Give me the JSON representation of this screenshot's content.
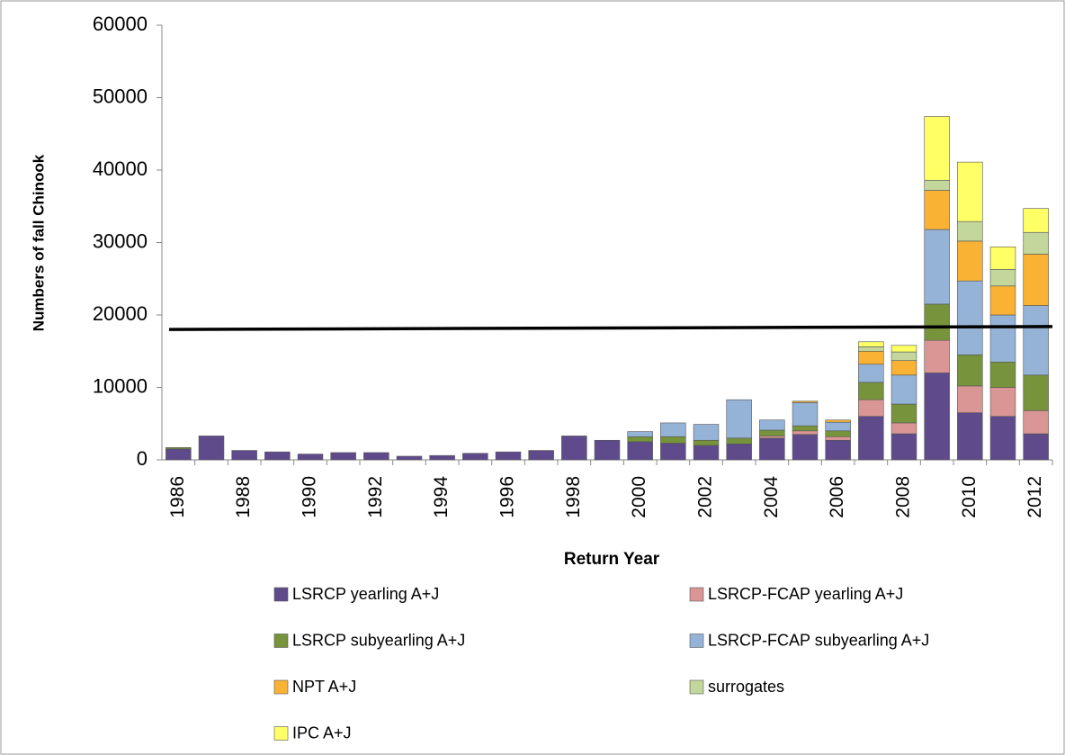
{
  "chart_data": {
    "type": "stacked_bar",
    "y_label": "Numbers of fall Chinook",
    "x_label": "Return Year",
    "categories": [
      "1986",
      null,
      "1988",
      null,
      "1990",
      null,
      "1992",
      null,
      "1994",
      null,
      "1996",
      null,
      "1998",
      null,
      "2000",
      null,
      "2002",
      null,
      "2004",
      null,
      "2006",
      null,
      "2008",
      null,
      "2010",
      null,
      "2012"
    ],
    "series": [
      {
        "name": "LSRCP yearling A+J",
        "color": "#5f4b8b",
        "values": [
          1500,
          3300,
          1300,
          1100,
          800,
          1000,
          1000,
          500,
          600,
          900,
          1100,
          1300,
          3300,
          2700,
          2500,
          2300,
          2000,
          2200,
          3000,
          3500,
          2700,
          6000,
          3600,
          12000,
          6500,
          6000,
          3600
        ]
      },
      {
        "name": "LSRCP-FCAP yearling A+J",
        "color": "#d99694",
        "values": [
          0,
          0,
          0,
          0,
          0,
          0,
          0,
          0,
          0,
          0,
          0,
          0,
          0,
          0,
          0,
          0,
          0,
          0,
          300,
          500,
          500,
          2300,
          1500,
          4500,
          3700,
          4000,
          3200
        ]
      },
      {
        "name": "LSRCP subyearling A+J",
        "color": "#77933c",
        "values": [
          200,
          0,
          0,
          0,
          0,
          0,
          0,
          0,
          0,
          0,
          0,
          0,
          0,
          0,
          700,
          900,
          700,
          800,
          800,
          700,
          800,
          2400,
          2600,
          5000,
          4300,
          3500,
          4900
        ]
      },
      {
        "name": "LSRCP-FCAP subyearling A+J",
        "color": "#95b3d7",
        "values": [
          0,
          0,
          0,
          0,
          0,
          0,
          0,
          0,
          0,
          0,
          0,
          0,
          0,
          0,
          700,
          1900,
          2200,
          5300,
          1400,
          3200,
          1200,
          2500,
          4000,
          10300,
          10200,
          6500,
          9600
        ]
      },
      {
        "name": "NPT A+J",
        "color": "#f9b233",
        "values": [
          0,
          0,
          0,
          0,
          0,
          0,
          0,
          0,
          0,
          0,
          0,
          0,
          0,
          0,
          0,
          0,
          0,
          0,
          0,
          200,
          300,
          1800,
          2000,
          5400,
          5500,
          4000,
          7100
        ]
      },
      {
        "name": "surrogates",
        "color": "#c3d69b",
        "values": [
          0,
          0,
          0,
          0,
          0,
          0,
          0,
          0,
          0,
          0,
          0,
          0,
          0,
          0,
          0,
          0,
          0,
          0,
          0,
          0,
          0,
          600,
          1200,
          1400,
          2700,
          2300,
          3000
        ]
      },
      {
        "name": "IPC A+J",
        "color": "#ffff66",
        "values": [
          0,
          0,
          0,
          0,
          0,
          0,
          0,
          0,
          0,
          0,
          0,
          0,
          0,
          0,
          0,
          0,
          0,
          0,
          0,
          0,
          0,
          700,
          900,
          8800,
          8200,
          3100,
          3300
        ]
      }
    ],
    "reference_line": [
      18000,
      18400
    ],
    "ylim": [
      0,
      60000
    ],
    "yticks": [
      0,
      10000,
      20000,
      30000,
      40000,
      50000,
      60000
    ],
    "grid": false
  }
}
